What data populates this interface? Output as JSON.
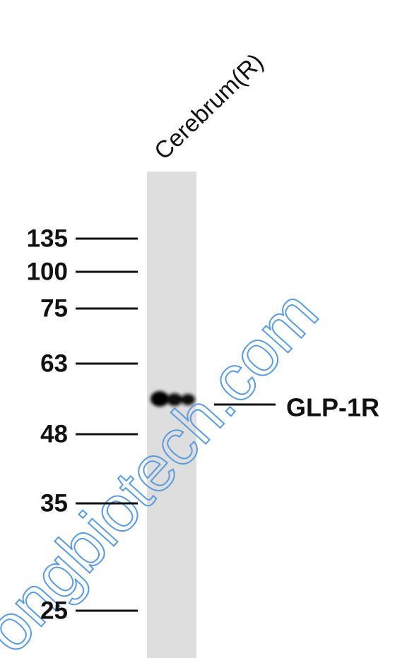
{
  "lane_label": "Cerebrum(R)",
  "markers": [
    "135",
    "100",
    "75",
    "63",
    "48",
    "35",
    "25"
  ],
  "band_label": "GLP-1R",
  "watermark": "ongbiotech.com"
}
